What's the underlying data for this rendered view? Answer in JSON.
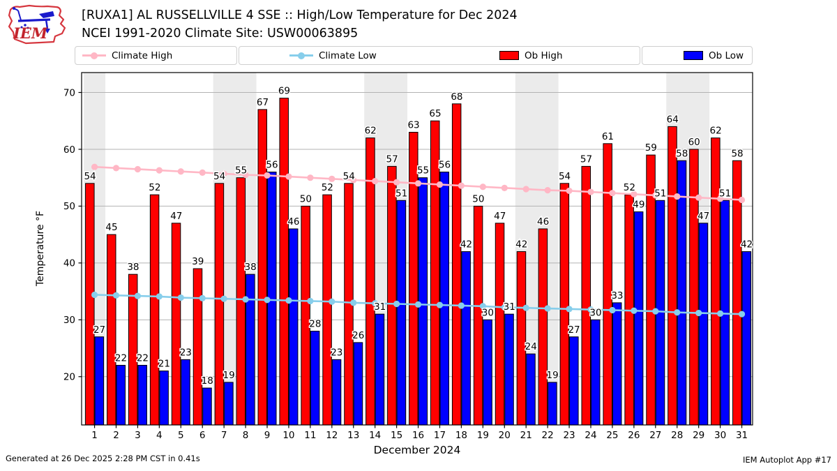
{
  "header": {
    "title_line1": "[RUXA1] AL RUSSELLVILLE 4 SSE :: High/Low Temperature for Dec 2024",
    "title_line2": "NCEI 1991-2020 Climate Site: USW00063895",
    "logo_text": "IEM"
  },
  "legend": {
    "items": [
      {
        "label": "Climate High",
        "color": "#ffb7c5",
        "marker": "line"
      },
      {
        "label": "Climate Low",
        "color": "#87ceeb",
        "marker": "line"
      },
      {
        "label": "Ob High",
        "color": "#ff0000",
        "marker": "patch"
      },
      {
        "label": "Ob Low",
        "color": "#0000ff",
        "marker": "patch"
      }
    ]
  },
  "chart_data": {
    "type": "bar",
    "title": "[RUXA1] AL RUSSELLVILLE 4 SSE :: High/Low Temperature for Dec 2024",
    "subtitle": "NCEI 1991-2020 Climate Site: USW00063895",
    "xlabel": "December 2024",
    "ylabel": "Temperature °F",
    "x": [
      1,
      2,
      3,
      4,
      5,
      6,
      7,
      8,
      9,
      10,
      11,
      12,
      13,
      14,
      15,
      16,
      17,
      18,
      19,
      20,
      21,
      22,
      23,
      24,
      25,
      26,
      27,
      28,
      29,
      30,
      31
    ],
    "series": [
      {
        "name": "Ob High",
        "type": "bar",
        "color": "#ff0000",
        "values": [
          54,
          45,
          38,
          52,
          47,
          39,
          54,
          55,
          67,
          69,
          50,
          52,
          54,
          62,
          57,
          63,
          65,
          68,
          50,
          47,
          42,
          46,
          54,
          57,
          61,
          52,
          59,
          64,
          60,
          62,
          58
        ]
      },
      {
        "name": "Ob Low",
        "type": "bar",
        "color": "#0000ff",
        "values": [
          27,
          22,
          22,
          21,
          23,
          18,
          19,
          38,
          56,
          46,
          28,
          23,
          26,
          31,
          51,
          55,
          56,
          42,
          30,
          31,
          24,
          19,
          27,
          30,
          33,
          49,
          51,
          58,
          47,
          51,
          42
        ]
      },
      {
        "name": "Climate High",
        "type": "line",
        "color": "#ffb7c5",
        "values": [
          56.9,
          56.7,
          56.5,
          56.3,
          56.1,
          55.9,
          55.7,
          55.5,
          55.4,
          55.2,
          55.0,
          54.8,
          54.6,
          54.4,
          54.2,
          54.0,
          53.8,
          53.6,
          53.4,
          53.2,
          53.0,
          52.8,
          52.7,
          52.5,
          52.3,
          52.1,
          51.9,
          51.7,
          51.5,
          51.3,
          51.1
        ]
      },
      {
        "name": "Climate Low",
        "type": "line",
        "color": "#87ceeb",
        "values": [
          34.4,
          34.3,
          34.2,
          34.1,
          33.9,
          33.8,
          33.7,
          33.6,
          33.5,
          33.4,
          33.3,
          33.2,
          33.0,
          32.9,
          32.8,
          32.7,
          32.6,
          32.5,
          32.4,
          32.2,
          32.1,
          32.0,
          31.9,
          31.8,
          31.7,
          31.6,
          31.5,
          31.3,
          31.2,
          31.1,
          31.0
        ]
      }
    ],
    "yticks": [
      20,
      30,
      40,
      50,
      60,
      70
    ],
    "ylim": [
      11.5,
      73.5
    ],
    "xlim": [
      0.4,
      31.5
    ],
    "grid": true,
    "grid_color": "#b3b3b3",
    "weekend_bands": [
      [
        1,
        1
      ],
      [
        7,
        8
      ],
      [
        14,
        15
      ],
      [
        21,
        22
      ],
      [
        28,
        29
      ]
    ],
    "band_color": "#ebebeb",
    "legend_position": "top"
  },
  "footer": {
    "left": "Generated at 26 Dec 2025 2:28 PM CST in 0.41s",
    "right": "IEM Autoplot App #17"
  }
}
